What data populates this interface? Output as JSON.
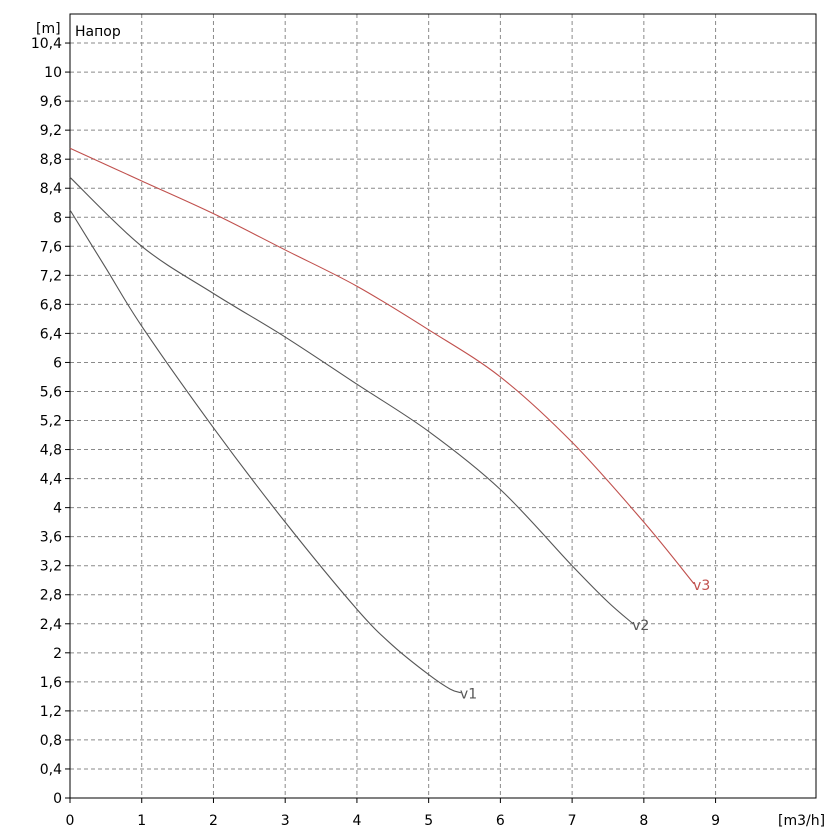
{
  "chart_data": {
    "type": "line",
    "title": "",
    "legend_title": "Напор",
    "legend_position": "top-left",
    "y_unit": "[m]",
    "x_unit": "[m3/h]",
    "xlim": [
      0,
      10.4
    ],
    "ylim": [
      0,
      10.8
    ],
    "x_ticks": [
      0,
      1,
      2,
      3,
      4,
      5,
      6,
      7,
      8,
      9
    ],
    "x_tick_labels": [
      "0",
      "1",
      "2",
      "3",
      "4",
      "5",
      "6",
      "7",
      "8",
      "9"
    ],
    "y_ticks": [
      0,
      0.4,
      0.8,
      1.2,
      1.6,
      2,
      2.4,
      2.8,
      3.2,
      3.6,
      4,
      4.4,
      4.8,
      5.2,
      5.6,
      6,
      6.4,
      6.8,
      7.2,
      7.6,
      8,
      8.4,
      8.8,
      9.2,
      9.6,
      10,
      10.4
    ],
    "y_tick_labels": [
      "0",
      "0,4",
      "0,8",
      "1,2",
      "1,6",
      "2",
      "2,4",
      "2,8",
      "3,2",
      "3,6",
      "4",
      "4,4",
      "4,8",
      "5,2",
      "5,6",
      "6",
      "6,4",
      "6,8",
      "7,2",
      "7,6",
      "8",
      "8,4",
      "8,8",
      "9,2",
      "9,6",
      "10",
      "10,4"
    ],
    "grid": true,
    "series": [
      {
        "name": "v1",
        "color": "#555555",
        "x": [
          0,
          0.5,
          1,
          2,
          3,
          4,
          4.5,
          5,
          5.3,
          5.45
        ],
        "y": [
          8.1,
          7.3,
          6.5,
          5.1,
          3.8,
          2.6,
          2.1,
          1.7,
          1.5,
          1.45
        ]
      },
      {
        "name": "v2",
        "color": "#555555",
        "x": [
          0,
          1,
          2,
          3,
          4,
          5,
          6,
          7,
          7.5,
          7.85
        ],
        "y": [
          8.55,
          7.6,
          6.95,
          6.35,
          5.7,
          5.05,
          4.25,
          3.2,
          2.7,
          2.4
        ]
      },
      {
        "name": "v3",
        "color": "#c0504d",
        "x": [
          0,
          1,
          2,
          3,
          4,
          5,
          6,
          7,
          8,
          8.7
        ],
        "y": [
          8.95,
          8.5,
          8.05,
          7.55,
          7.05,
          6.45,
          5.8,
          4.9,
          3.8,
          2.95
        ]
      }
    ]
  }
}
